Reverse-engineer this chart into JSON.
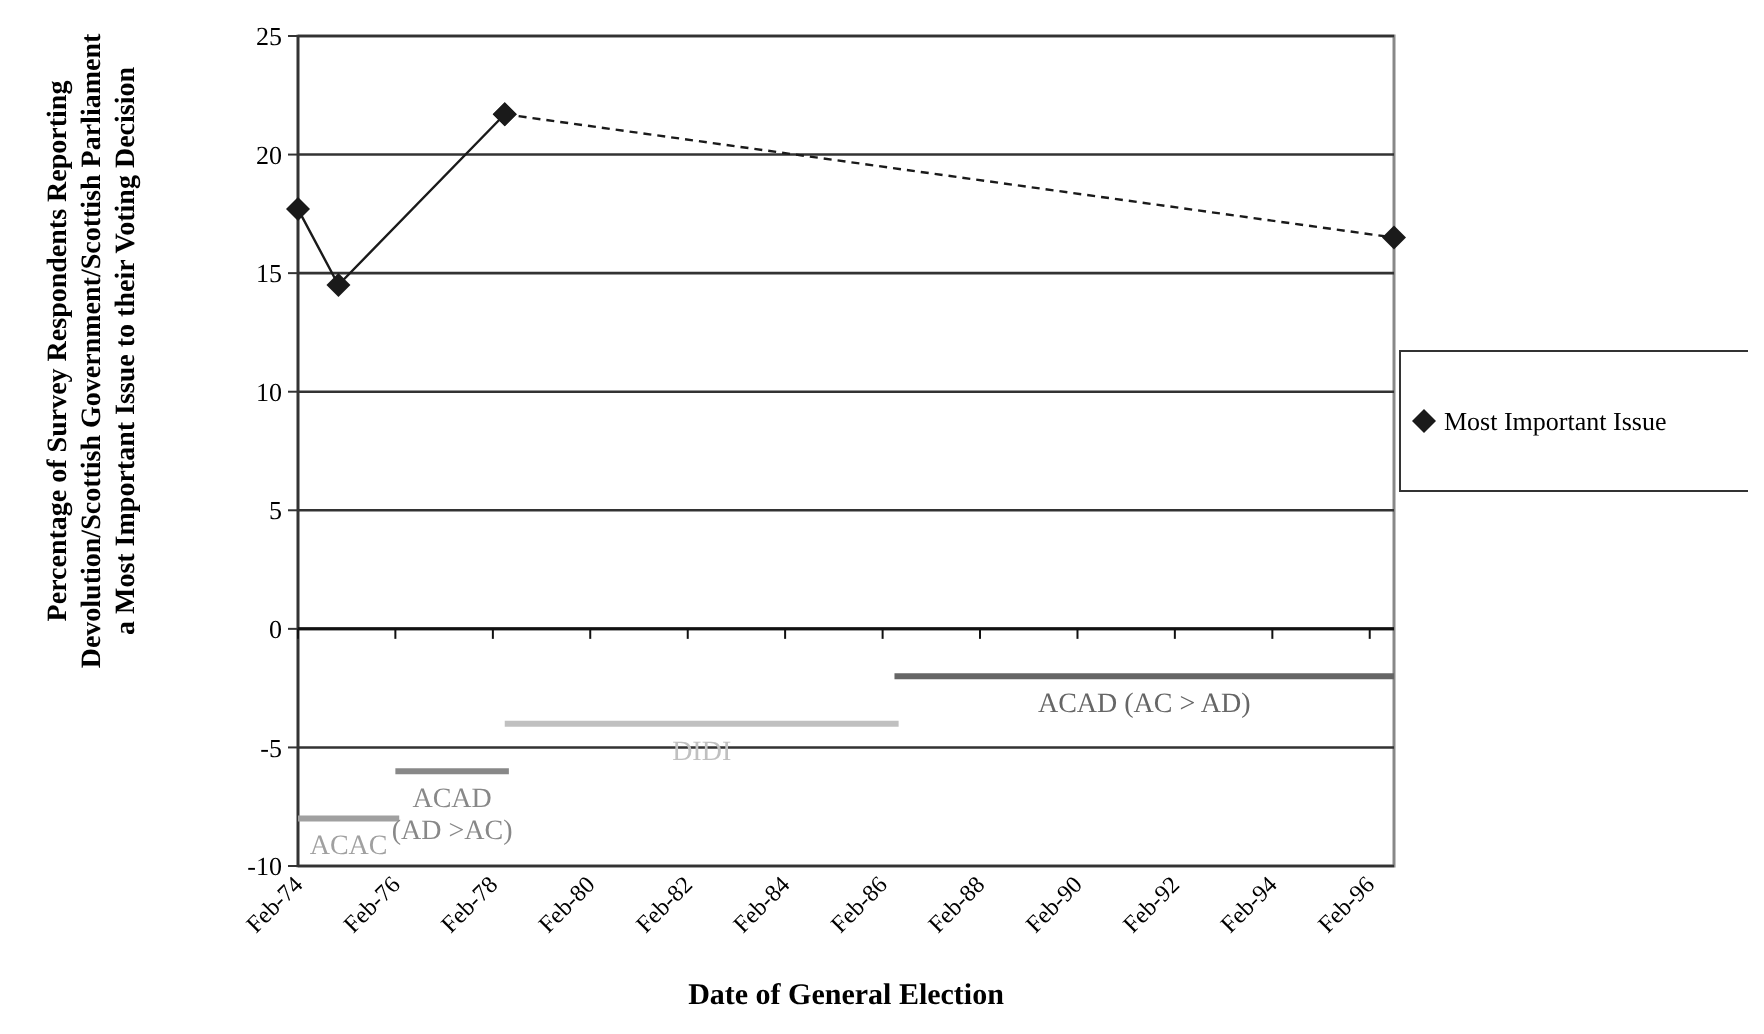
{
  "chart_data": {
    "type": "line",
    "xlabel": "Date of General Election",
    "ylabel": "Percentage of Survey Respondents Reporting\nDevolution/Scottish Government/Scottish Parliament\na Most Important Issue to their Voting Decision",
    "xlim": [
      "1974-02",
      "1996-08"
    ],
    "xticks": [
      {
        "value": "1974-02",
        "label": "Feb-74"
      },
      {
        "value": "1976-02",
        "label": "Feb-76"
      },
      {
        "value": "1978-02",
        "label": "Feb-78"
      },
      {
        "value": "1980-02",
        "label": "Feb-80"
      },
      {
        "value": "1982-02",
        "label": "Feb-82"
      },
      {
        "value": "1984-02",
        "label": "Feb-84"
      },
      {
        "value": "1986-02",
        "label": "Feb-86"
      },
      {
        "value": "1988-02",
        "label": "Feb-88"
      },
      {
        "value": "1990-02",
        "label": "Feb-90"
      },
      {
        "value": "1992-02",
        "label": "Feb-92"
      },
      {
        "value": "1994-02",
        "label": "Feb-94"
      },
      {
        "value": "1996-02",
        "label": "Feb-96"
      }
    ],
    "ylim": [
      -10,
      25
    ],
    "yticks": [
      -10,
      -5,
      0,
      5,
      10,
      15,
      20,
      25
    ],
    "grid": "y",
    "legend": "right",
    "series": [
      {
        "name": "Most Important Issue",
        "color": "#1a1a1a",
        "x": [
          "1974-02",
          "1974-12",
          "1978-05"
        ],
        "values": [
          17.7,
          14.5,
          21.7
        ],
        "marker": "diamond",
        "line_style": "solid"
      },
      {
        "color": "#1a1a1a",
        "x": [
          "1978-05",
          "1996-08"
        ],
        "values": [
          21.7,
          16.5
        ],
        "marker": "diamond",
        "line_style": "dashed"
      },
      {
        "name": "ACAC",
        "color": "#a0a0a0",
        "x": [
          "1974-02",
          "1976-03"
        ],
        "values": [
          -8,
          -8
        ],
        "marker": "none",
        "line_style": "solid"
      },
      {
        "name": "ACAD\n(AD >AC)",
        "color": "#888888",
        "x": [
          "1976-02",
          "1978-06"
        ],
        "values": [
          -6,
          -6
        ],
        "marker": "none",
        "line_style": "solid"
      },
      {
        "name": "DIDI",
        "color": "#c0c0c0",
        "x": [
          "1978-05",
          "1986-06"
        ],
        "values": [
          -4,
          -4
        ],
        "marker": "none",
        "line_style": "solid"
      },
      {
        "name": "ACAD (AC > AD)",
        "color": "#666666",
        "x": [
          "1986-05",
          "1996-08"
        ],
        "values": [
          -2,
          -2
        ],
        "marker": "none",
        "line_style": "solid"
      }
    ]
  }
}
